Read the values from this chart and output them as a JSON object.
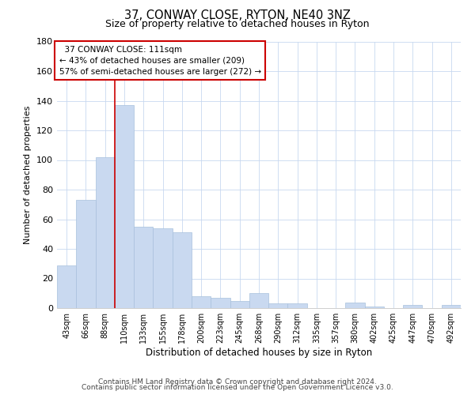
{
  "title": "37, CONWAY CLOSE, RYTON, NE40 3NZ",
  "subtitle": "Size of property relative to detached houses in Ryton",
  "xlabel": "Distribution of detached houses by size in Ryton",
  "ylabel": "Number of detached properties",
  "bar_labels": [
    "43sqm",
    "66sqm",
    "88sqm",
    "110sqm",
    "133sqm",
    "155sqm",
    "178sqm",
    "200sqm",
    "223sqm",
    "245sqm",
    "268sqm",
    "290sqm",
    "312sqm",
    "335sqm",
    "357sqm",
    "380sqm",
    "402sqm",
    "425sqm",
    "447sqm",
    "470sqm",
    "492sqm"
  ],
  "bar_values": [
    29,
    73,
    102,
    137,
    55,
    54,
    51,
    8,
    7,
    5,
    10,
    3,
    3,
    0,
    0,
    4,
    1,
    0,
    2,
    0,
    2
  ],
  "bar_color": "#c9d9f0",
  "bar_edge_color": "#a8c0dc",
  "vline_index": 3,
  "vline_color": "#cc0000",
  "ylim": [
    0,
    180
  ],
  "yticks": [
    0,
    20,
    40,
    60,
    80,
    100,
    120,
    140,
    160,
    180
  ],
  "annotation_title": "37 CONWAY CLOSE: 111sqm",
  "annotation_line1": "← 43% of detached houses are smaller (209)",
  "annotation_line2": "57% of semi-detached houses are larger (272) →",
  "annotation_box_facecolor": "#ffffff",
  "annotation_box_edgecolor": "#cc0000",
  "footer_line1": "Contains HM Land Registry data © Crown copyright and database right 2024.",
  "footer_line2": "Contains public sector information licensed under the Open Government Licence v3.0.",
  "background_color": "#ffffff",
  "grid_color": "#c8d8f0"
}
